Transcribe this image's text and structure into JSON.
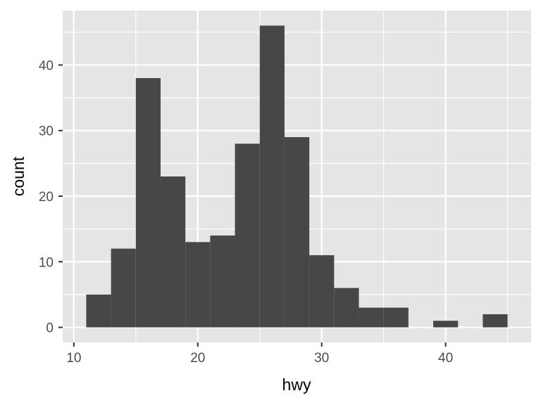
{
  "chart_data": {
    "type": "bar",
    "subtype": "histogram",
    "xlabel": "hwy",
    "ylabel": "count",
    "xlim": [
      9.1,
      46.9
    ],
    "ylim": [
      -2.3,
      48.3
    ],
    "x_ticks": [
      10,
      20,
      30,
      40
    ],
    "y_ticks": [
      0,
      10,
      20,
      30,
      40
    ],
    "x_tick_labels": [
      "10",
      "20",
      "30",
      "40"
    ],
    "y_tick_labels": [
      "0",
      "10",
      "20",
      "30",
      "40"
    ],
    "bin_width": 2,
    "bins": [
      {
        "x0": 11,
        "x1": 13,
        "count": 5
      },
      {
        "x0": 13,
        "x1": 15,
        "count": 12
      },
      {
        "x0": 15,
        "x1": 17,
        "count": 38
      },
      {
        "x0": 17,
        "x1": 19,
        "count": 23
      },
      {
        "x0": 19,
        "x1": 21,
        "count": 13
      },
      {
        "x0": 21,
        "x1": 23,
        "count": 14
      },
      {
        "x0": 23,
        "x1": 25,
        "count": 28
      },
      {
        "x0": 25,
        "x1": 27,
        "count": 46
      },
      {
        "x0": 27,
        "x1": 29,
        "count": 29
      },
      {
        "x0": 29,
        "x1": 31,
        "count": 11
      },
      {
        "x0": 31,
        "x1": 33,
        "count": 6
      },
      {
        "x0": 33,
        "x1": 35,
        "count": 3
      },
      {
        "x0": 35,
        "x1": 37,
        "count": 3
      },
      {
        "x0": 37,
        "x1": 39,
        "count": 0
      },
      {
        "x0": 39,
        "x1": 41,
        "count": 1
      },
      {
        "x0": 41,
        "x1": 43,
        "count": 0
      },
      {
        "x0": 43,
        "x1": 45,
        "count": 2
      }
    ],
    "grid": true,
    "colors": {
      "panel_background": "#e5e5e5",
      "grid_major": "#ffffff",
      "bar_fill": "#474747",
      "tick_text": "#4d4d4d",
      "tick_mark": "#333333",
      "axis_title": "#000000"
    }
  }
}
